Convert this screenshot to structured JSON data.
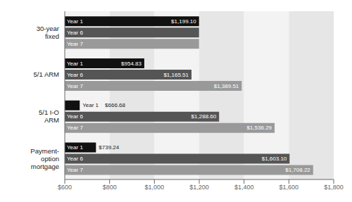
{
  "chart_data": {
    "type": "bar",
    "orientation": "horizontal",
    "categories": [
      "30-year\nfixed",
      "5/1 ARM",
      "5/1 I-O\nARM",
      "Payment-\noption\nmortgage"
    ],
    "series": [
      {
        "name": "Year 1",
        "color": "#111111",
        "values": [
          1199.1,
          954.83,
          666.68,
          739.24
        ],
        "value_labels": [
          "$1,199.10",
          "$954.83",
          "$666.68",
          "$739.24"
        ]
      },
      {
        "name": "Year 6",
        "color": "#555555",
        "values": [
          1199.1,
          1165.51,
          1288.6,
          1603.1
        ],
        "value_labels": [
          null,
          "$1,165.51",
          "$1,288.60",
          "$1,603.10"
        ]
      },
      {
        "name": "Year 7",
        "color": "#999999",
        "values": [
          1199.1,
          1389.51,
          1536.29,
          1708.22
        ],
        "value_labels": [
          null,
          "$1,389.51",
          "$1,536.29",
          "$1,708.22"
        ]
      }
    ],
    "xlim": [
      600,
      1800
    ],
    "xticks": [
      {
        "value": 600,
        "label": "$600"
      },
      {
        "value": 800,
        "label": "$800"
      },
      {
        "value": 1000,
        "label": "$1,000"
      },
      {
        "value": 1200,
        "label": "$1,200"
      },
      {
        "value": 1400,
        "label": "$1,400"
      },
      {
        "value": 1600,
        "label": "$1,600"
      },
      {
        "value": 1800,
        "label": "$1,800"
      }
    ],
    "grid": true,
    "data_labels": true
  }
}
